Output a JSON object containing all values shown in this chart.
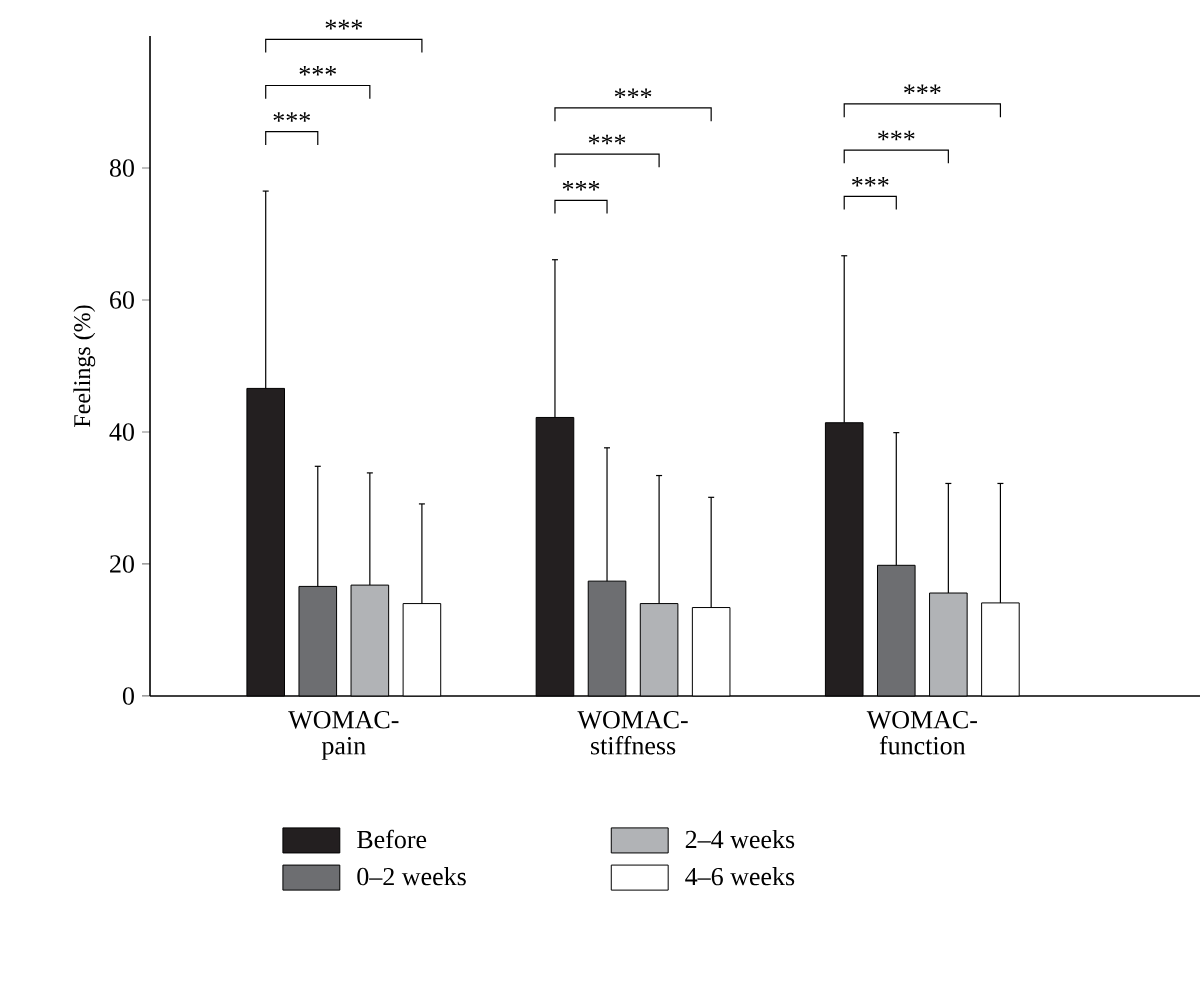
{
  "chart_data": {
    "type": "bar",
    "ylabel": "Feelings (%)",
    "categories": [
      "WOMAC-pain",
      "WOMAC-stiffness",
      "WOMAC-function"
    ],
    "series": [
      {
        "name": "Before",
        "color": "#231f20",
        "values": [
          46.6,
          42.2,
          41.4
        ],
        "errors": [
          [
            46.6,
            76.5
          ],
          [
            42.2,
            66.1
          ],
          [
            41.4,
            66.7
          ]
        ]
      },
      {
        "name": "0–2 weeks",
        "color": "#6d6e71",
        "values": [
          16.6,
          17.4,
          19.8
        ],
        "errors": [
          [
            16.6,
            34.8
          ],
          [
            17.4,
            37.6
          ],
          [
            19.8,
            39.9
          ]
        ]
      },
      {
        "name": "2–4 weeks",
        "color": "#b1b3b6",
        "values": [
          16.8,
          14.0,
          15.6
        ],
        "errors": [
          [
            16.8,
            33.8
          ],
          [
            14.0,
            33.4
          ],
          [
            15.6,
            32.2
          ]
        ]
      },
      {
        "name": "4–6 weeks",
        "color": "#ffffff",
        "values": [
          14.0,
          13.4,
          14.1
        ],
        "errors": [
          [
            14.0,
            29.1
          ],
          [
            13.4,
            30.1
          ],
          [
            14.1,
            32.2
          ]
        ]
      }
    ],
    "ylim": [
      0,
      100
    ],
    "yticks": [
      0,
      20,
      40,
      60,
      80
    ],
    "legend": "bottom",
    "annotations": [
      "***",
      "***",
      "***",
      "***",
      "***",
      "***",
      "***",
      "***",
      "***"
    ]
  }
}
